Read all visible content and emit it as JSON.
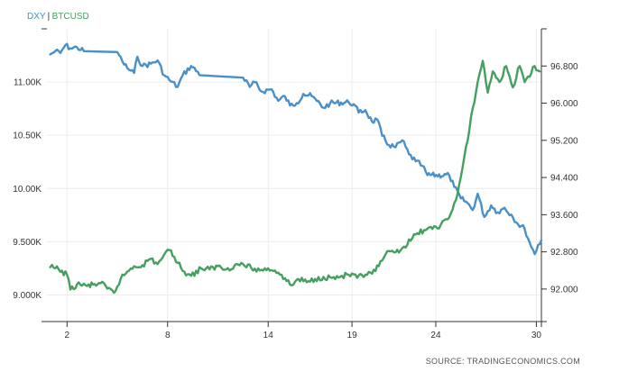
{
  "chart_data": {
    "type": "line",
    "legend": {
      "placement": "top-left",
      "separator": "|",
      "entries": [
        {
          "name": "DXY",
          "color": "#4a90c8"
        },
        {
          "name": "BTCUSD",
          "color": "#45a060"
        }
      ]
    },
    "source": "SOURCE: TRADINGECONOMICS.COM",
    "grid": true,
    "x_axis": {
      "range": [
        0.8,
        30.3
      ],
      "ticks": [
        2,
        8,
        14,
        19,
        24,
        30
      ],
      "tick_labels": [
        "2",
        "8",
        "14",
        "19",
        "24",
        "30"
      ]
    },
    "y_left": {
      "series": "BTCUSD",
      "range": [
        8750,
        11500
      ],
      "ticks": [
        9000,
        9500,
        10000,
        10500,
        11000
      ],
      "tick_labels": [
        "9.000K",
        "9.500K",
        "10.00K",
        "10.50K",
        "11.00K"
      ]
    },
    "y_right": {
      "series": "DXY",
      "range": [
        91.3,
        97.6
      ],
      "ticks": [
        92.0,
        92.8,
        93.6,
        94.4,
        95.2,
        96.0,
        96.8
      ],
      "tick_labels": [
        "92.000",
        "92.800",
        "93.600",
        "94.400",
        "95.200",
        "96.000",
        "96.800"
      ]
    },
    "series": [
      {
        "name": "DXY",
        "axis": "right",
        "color": "#4a90c8",
        "points": [
          [
            1.0,
            97.05
          ],
          [
            1.3,
            97.12
          ],
          [
            1.6,
            97.08
          ],
          [
            1.9,
            97.25
          ],
          [
            2.2,
            97.18
          ],
          [
            2.6,
            97.2
          ],
          [
            3.0,
            97.12
          ],
          [
            5.0,
            97.1
          ],
          [
            5.3,
            96.9
          ],
          [
            5.6,
            96.75
          ],
          [
            6.0,
            96.65
          ],
          [
            6.2,
            97.0
          ],
          [
            6.5,
            96.8
          ],
          [
            7.0,
            96.85
          ],
          [
            7.4,
            96.92
          ],
          [
            7.8,
            96.6
          ],
          [
            8.1,
            96.5
          ],
          [
            8.6,
            96.35
          ],
          [
            8.9,
            96.6
          ],
          [
            9.4,
            96.8
          ],
          [
            10.0,
            96.6
          ],
          [
            12.5,
            96.55
          ],
          [
            12.9,
            96.35
          ],
          [
            13.2,
            96.45
          ],
          [
            13.6,
            96.25
          ],
          [
            14.2,
            96.3
          ],
          [
            14.6,
            96.05
          ],
          [
            15.0,
            96.15
          ],
          [
            15.3,
            95.95
          ],
          [
            15.7,
            96.0
          ],
          [
            16.1,
            96.2
          ],
          [
            16.6,
            96.15
          ],
          [
            16.9,
            96.05
          ],
          [
            17.3,
            95.9
          ],
          [
            17.7,
            96.0
          ],
          [
            18.8,
            96.02
          ],
          [
            19.1,
            95.98
          ],
          [
            19.4,
            95.8
          ],
          [
            19.8,
            95.85
          ],
          [
            20.2,
            95.6
          ],
          [
            20.5,
            95.65
          ],
          [
            20.8,
            95.3
          ],
          [
            21.2,
            95.1
          ],
          [
            21.6,
            95.05
          ],
          [
            22.0,
            95.2
          ],
          [
            22.4,
            94.9
          ],
          [
            22.8,
            94.75
          ],
          [
            23.2,
            94.65
          ],
          [
            23.5,
            94.45
          ],
          [
            24.8,
            94.45
          ],
          [
            25.1,
            94.2
          ],
          [
            25.5,
            93.95
          ],
          [
            25.9,
            93.85
          ],
          [
            26.2,
            93.7
          ],
          [
            26.5,
            94.05
          ],
          [
            26.9,
            93.55
          ],
          [
            27.3,
            93.8
          ],
          [
            27.7,
            93.65
          ],
          [
            28.1,
            93.75
          ],
          [
            28.5,
            93.6
          ],
          [
            28.9,
            93.4
          ],
          [
            29.3,
            93.3
          ],
          [
            29.6,
            93.0
          ],
          [
            29.9,
            92.75
          ],
          [
            30.1,
            92.95
          ],
          [
            30.3,
            93.05
          ]
        ]
      },
      {
        "name": "BTCUSD",
        "axis": "left",
        "color": "#45a060",
        "points": [
          [
            1.0,
            9260
          ],
          [
            1.5,
            9240
          ],
          [
            2.0,
            9190
          ],
          [
            2.2,
            9050
          ],
          [
            2.6,
            9100
          ],
          [
            3.2,
            9085
          ],
          [
            4.0,
            9110
          ],
          [
            4.4,
            9060
          ],
          [
            4.8,
            9020
          ],
          [
            5.2,
            9150
          ],
          [
            5.6,
            9220
          ],
          [
            6.0,
            9270
          ],
          [
            6.5,
            9280
          ],
          [
            7.0,
            9340
          ],
          [
            7.4,
            9290
          ],
          [
            7.8,
            9380
          ],
          [
            8.2,
            9420
          ],
          [
            8.6,
            9300
          ],
          [
            9.0,
            9220
          ],
          [
            9.4,
            9180
          ],
          [
            10.0,
            9250
          ],
          [
            10.5,
            9240
          ],
          [
            11.0,
            9270
          ],
          [
            11.5,
            9240
          ],
          [
            12.0,
            9280
          ],
          [
            12.5,
            9290
          ],
          [
            13.0,
            9250
          ],
          [
            13.5,
            9230
          ],
          [
            14.0,
            9250
          ],
          [
            14.4,
            9230
          ],
          [
            14.8,
            9190
          ],
          [
            15.1,
            9130
          ],
          [
            15.4,
            9090
          ],
          [
            15.8,
            9150
          ],
          [
            16.3,
            9120
          ],
          [
            16.8,
            9150
          ],
          [
            17.3,
            9170
          ],
          [
            17.8,
            9160
          ],
          [
            18.3,
            9170
          ],
          [
            18.8,
            9190
          ],
          [
            19.3,
            9160
          ],
          [
            19.8,
            9190
          ],
          [
            20.2,
            9200
          ],
          [
            20.6,
            9270
          ],
          [
            21.0,
            9380
          ],
          [
            21.5,
            9400
          ],
          [
            22.0,
            9440
          ],
          [
            22.5,
            9510
          ],
          [
            22.9,
            9580
          ],
          [
            23.3,
            9610
          ],
          [
            23.8,
            9620
          ],
          [
            24.3,
            9660
          ],
          [
            24.7,
            9710
          ],
          [
            25.0,
            9800
          ],
          [
            25.3,
            9950
          ],
          [
            25.6,
            10200
          ],
          [
            25.9,
            10450
          ],
          [
            26.2,
            10750
          ],
          [
            26.5,
            11000
          ],
          [
            26.8,
            11200
          ],
          [
            27.1,
            10900
          ],
          [
            27.4,
            11100
          ],
          [
            27.8,
            11000
          ],
          [
            28.2,
            11150
          ],
          [
            28.6,
            10950
          ],
          [
            29.0,
            11150
          ],
          [
            29.3,
            11000
          ],
          [
            29.6,
            11050
          ],
          [
            29.9,
            11150
          ],
          [
            30.2,
            11100
          ]
        ]
      }
    ]
  }
}
